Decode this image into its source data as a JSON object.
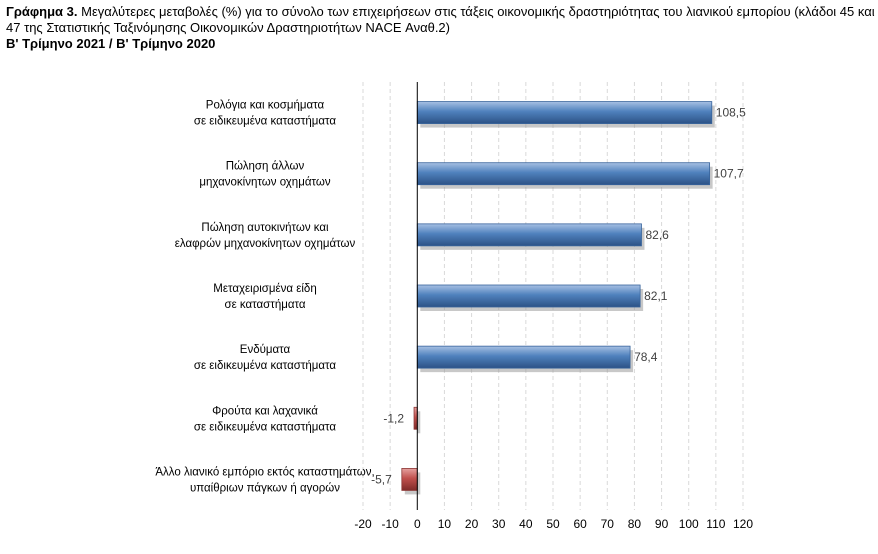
{
  "title": {
    "label": "Γράφημα 3.",
    "text": "Μεγαλύτερες μεταβολές (%) για το σύνολο των επιχειρήσεων στις τάξεις οικονομικής δραστηριότητας του λιανικού εμπορίου (κλάδοι 45 και 47 της Στατιστικής Ταξινόμησης Οικονομικών Δραστηριοτήτων NACE Αναθ.2)",
    "subtitle": "Β' Τρίμηνο 2021 / Β' Τρίμηνο 2020"
  },
  "colors": {
    "positive": "#4f81bd",
    "negative": "#c0504d",
    "grid": "#d9d9d9",
    "axis": "#000000"
  },
  "chart_data": {
    "type": "bar",
    "orientation": "horizontal",
    "categories": [
      [
        "Ρολόγια και κοσμήματα",
        "σε ειδικευμένα καταστήματα"
      ],
      [
        "Πώληση άλλων",
        "μηχανοκίνητων οχημάτων"
      ],
      [
        "Πώληση αυτοκινήτων και",
        "ελαφρών μηχανοκίνητων οχημάτων"
      ],
      [
        "Μεταχειρισμένα είδη",
        "σε καταστήματα"
      ],
      [
        "Ενδύματα",
        "σε ειδικευμένα καταστήματα"
      ],
      [
        "Φρούτα και λαχανικά",
        "σε ειδικευμένα καταστήματα"
      ],
      [
        "Άλλο λιανικό εμπόριο εκτός καταστημάτων,",
        "υπαίθριων πάγκων ή αγορών"
      ]
    ],
    "values": [
      108.5,
      107.7,
      82.6,
      82.1,
      78.4,
      -1.2,
      -5.7
    ],
    "value_labels": [
      "108,5",
      "107,7",
      "82,6",
      "82,1",
      "78,4",
      "-1,2",
      "-5,7"
    ],
    "xlim": [
      -20,
      120
    ],
    "xticks": [
      -20,
      -10,
      0,
      10,
      20,
      30,
      40,
      50,
      60,
      70,
      80,
      90,
      100,
      110,
      120
    ],
    "grid": true,
    "legend": "none"
  }
}
